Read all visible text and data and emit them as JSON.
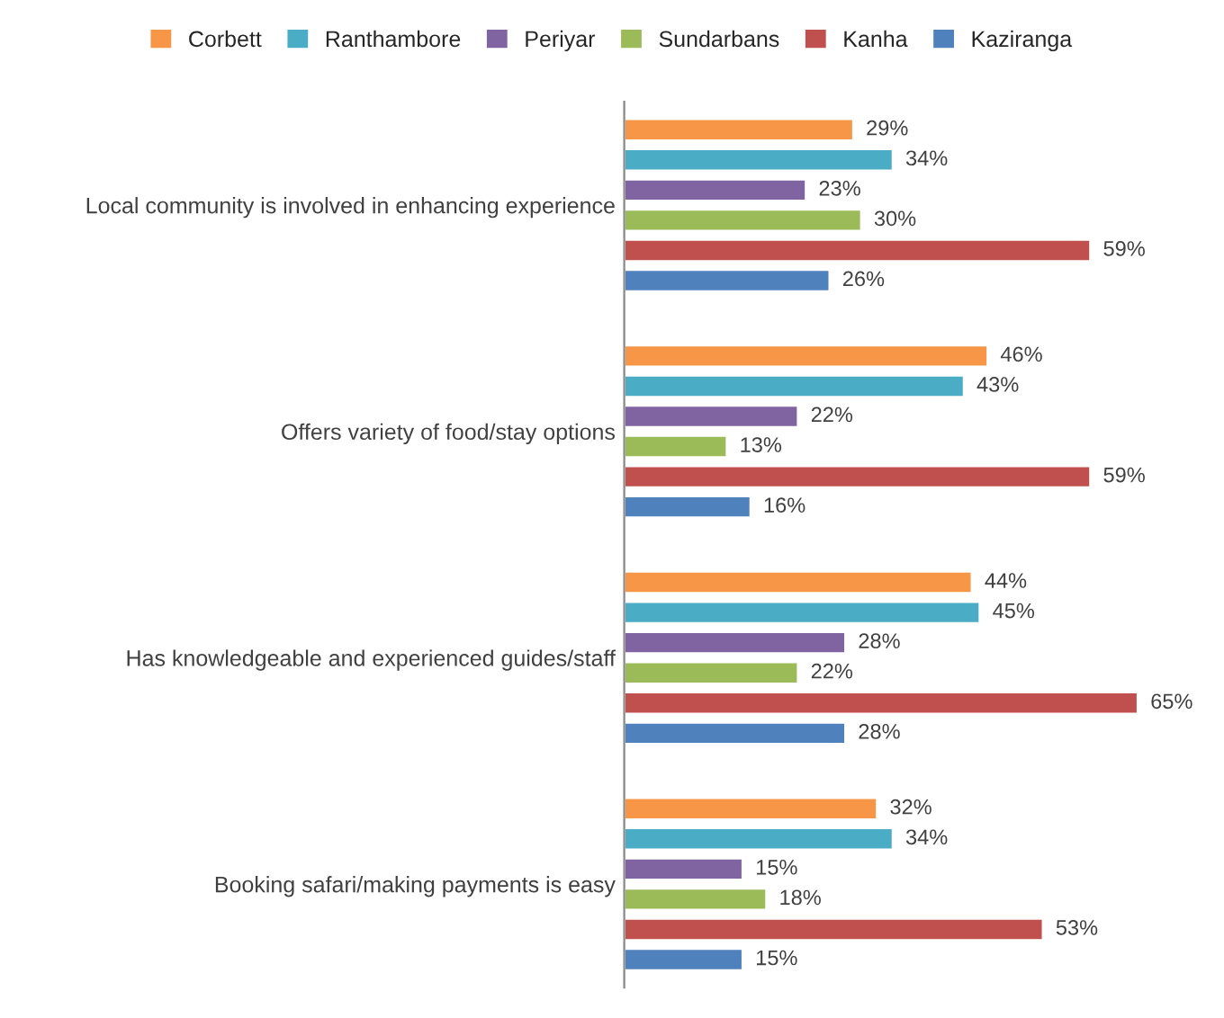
{
  "chart_data": {
    "type": "bar",
    "orientation": "horizontal",
    "legend": "top",
    "grid": false,
    "categories": [
      "Local community is involved in enhancing experience",
      "Offers variety of food/stay options",
      "Has knowledgeable and experienced guides/staff",
      "Booking safari/making payments is easy"
    ],
    "series": [
      {
        "name": "Corbett",
        "color": "#f79646",
        "values": [
          29,
          46,
          44,
          32
        ],
        "value_labels": [
          "29%",
          "46%",
          "44%",
          "32%"
        ]
      },
      {
        "name": "Ranthambore",
        "color": "#4bacc6",
        "values": [
          34,
          43,
          45,
          34
        ],
        "value_labels": [
          "34%",
          "43%",
          "45%",
          "34%"
        ]
      },
      {
        "name": "Periyar",
        "color": "#8064a2",
        "values": [
          23,
          22,
          28,
          15
        ],
        "value_labels": [
          "23%",
          "22%",
          "28%",
          "15%"
        ]
      },
      {
        "name": "Sundarbans",
        "color": "#9bbb59",
        "values": [
          30,
          13,
          22,
          18
        ],
        "value_labels": [
          "30%",
          "13%",
          "22%",
          "18%"
        ]
      },
      {
        "name": "Kanha",
        "color": "#c0504d",
        "values": [
          59,
          59,
          65,
          53
        ],
        "value_labels": [
          "59%",
          "59%",
          "65%",
          "53%"
        ]
      },
      {
        "name": "Kaziranga",
        "color": "#4f81bd",
        "values": [
          26,
          16,
          28,
          15
        ],
        "value_labels": [
          "26%",
          "16%",
          "28%",
          "15%"
        ]
      }
    ]
  }
}
